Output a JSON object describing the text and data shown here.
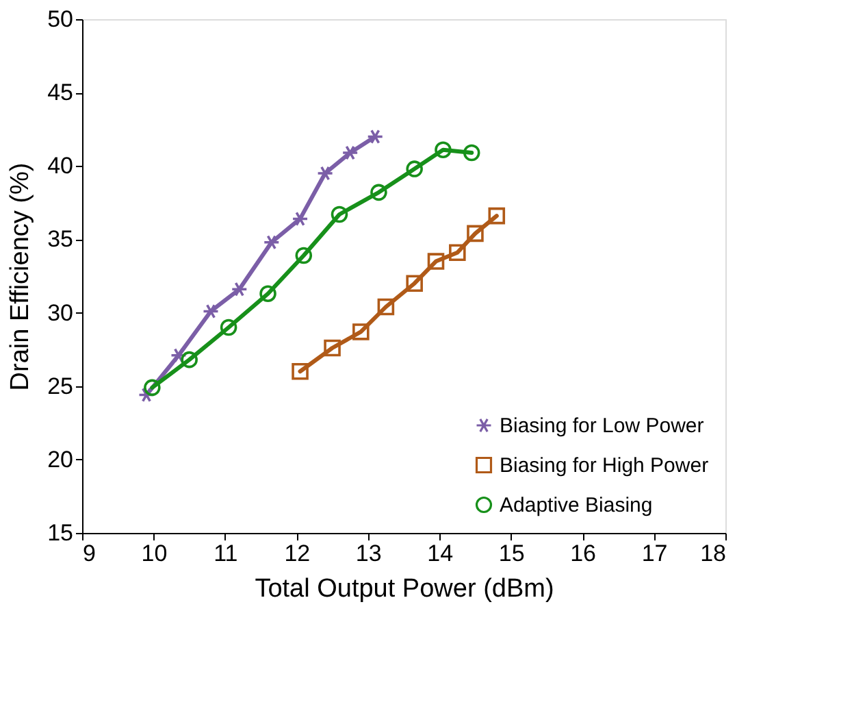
{
  "chart_data": {
    "type": "line",
    "xlabel": "Total Output Power (dBm)",
    "ylabel": "Drain Efficiency (%)",
    "xlim": [
      9,
      18
    ],
    "xticks": [
      9,
      10,
      11,
      12,
      13,
      14,
      15,
      16,
      17,
      18
    ],
    "ylim": [
      15,
      50
    ],
    "yticks": [
      15,
      20,
      25,
      30,
      35,
      40,
      45,
      50
    ],
    "grid": false,
    "legend": "bottom right",
    "line_style": "solid",
    "series": [
      {
        "name": "Biasing for Low Power",
        "color": "#7b5ea7",
        "marker": "cross",
        "x": [
          9.9,
          10.35,
          10.8,
          11.2,
          11.65,
          12.05,
          12.4,
          12.75,
          13.1
        ],
        "values": [
          24.4,
          27.1,
          30.1,
          31.6,
          34.8,
          36.4,
          39.5,
          40.9,
          42.0
        ]
      },
      {
        "name": "Biasing for High Power",
        "color": "#b05a18",
        "marker": "square",
        "x": [
          12.05,
          12.5,
          12.9,
          13.25,
          13.65,
          13.95,
          14.25,
          14.5,
          14.8
        ],
        "values": [
          26.0,
          27.6,
          28.7,
          30.4,
          32.0,
          33.5,
          34.1,
          35.4,
          36.6
        ]
      },
      {
        "name": "Adaptive Biasing",
        "color": "#17901a",
        "marker": "circle",
        "x": [
          9.98,
          10.5,
          11.05,
          11.6,
          12.1,
          12.6,
          13.15,
          13.65,
          14.05,
          14.45
        ],
        "values": [
          24.9,
          26.8,
          29.0,
          31.3,
          33.9,
          36.7,
          38.2,
          39.8,
          41.1,
          40.9
        ]
      }
    ]
  }
}
